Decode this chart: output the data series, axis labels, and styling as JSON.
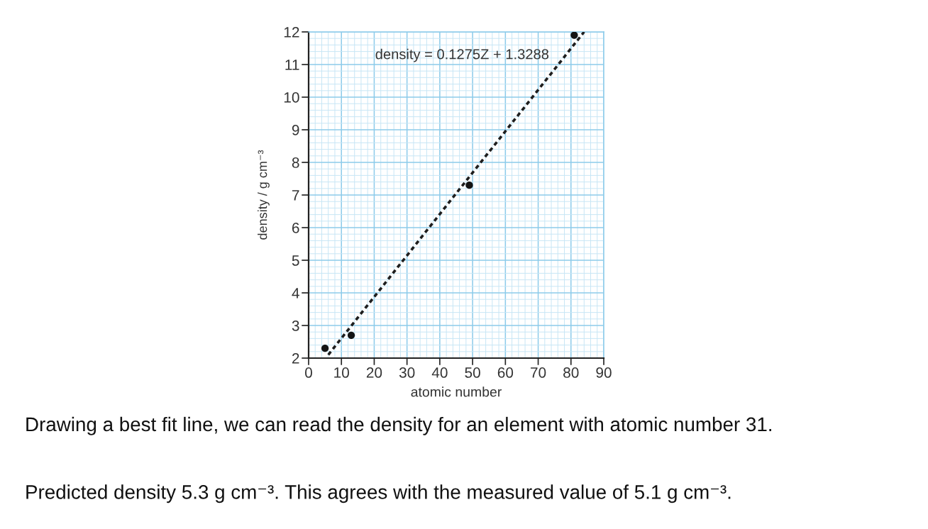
{
  "chart_data": {
    "type": "scatter",
    "xlabel": "atomic number",
    "ylabel": "density / g cm⁻³",
    "xlim": [
      0,
      90
    ],
    "xticks": [
      0,
      {
        "value": 2,
        "label": null
      },
      {
        "value": 4,
        "label": null
      },
      {
        "value": 6,
        "label": null
      },
      {
        "value": 8,
        "label": null
      },
      10,
      {
        "value": 12,
        "label": null
      },
      {
        "value": 14,
        "label": null
      },
      {
        "value": 16,
        "label": null
      },
      {
        "value": 18,
        "label": null
      },
      20,
      {
        "value": 22,
        "label": null
      },
      {
        "value": 24,
        "label": null
      },
      {
        "value": 26,
        "label": null
      },
      {
        "value": 28,
        "label": null
      },
      30,
      {
        "value": 32,
        "label": null
      },
      {
        "value": 34,
        "label": null
      },
      {
        "value": 36,
        "label": null
      },
      {
        "value": 38,
        "label": null
      },
      40,
      {
        "value": 42,
        "label": null
      },
      {
        "value": 44,
        "label": null
      },
      {
        "value": 46,
        "label": null
      },
      {
        "value": 48,
        "label": null
      },
      50,
      {
        "value": 52,
        "label": null
      },
      {
        "value": 54,
        "label": null
      },
      {
        "value": 56,
        "label": null
      },
      {
        "value": 58,
        "label": null
      },
      60,
      {
        "value": 62,
        "label": null
      },
      {
        "value": 64,
        "label": null
      },
      {
        "value": 66,
        "label": null
      },
      {
        "value": 68,
        "label": null
      },
      70,
      {
        "value": 72,
        "label": null
      },
      {
        "value": 74,
        "label": null
      },
      {
        "value": 76,
        "label": null
      },
      {
        "value": 78,
        "label": null
      },
      80,
      {
        "value": 82,
        "label": null
      },
      {
        "value": 84,
        "label": null
      },
      {
        "value": 86,
        "label": null
      },
      {
        "value": 88,
        "label": null
      },
      90
    ],
    "ylim": [
      2,
      12
    ],
    "yticks": [
      2,
      {
        "value": 2.2,
        "label": null
      },
      {
        "value": 2.4,
        "label": null
      },
      {
        "value": 2.6,
        "label": null
      },
      {
        "value": 2.8,
        "label": null
      },
      3,
      {
        "value": 3.2,
        "label": null
      },
      {
        "value": 3.4,
        "label": null
      },
      {
        "value": 3.6,
        "label": null
      },
      {
        "value": 3.8,
        "label": null
      },
      4,
      {
        "value": 4.2,
        "label": null
      },
      {
        "value": 4.4,
        "label": null
      },
      {
        "value": 4.6,
        "label": null
      },
      {
        "value": 4.8,
        "label": null
      },
      5,
      {
        "value": 5.2,
        "label": null
      },
      {
        "value": 5.4,
        "label": null
      },
      {
        "value": 5.6,
        "label": null
      },
      {
        "value": 5.8,
        "label": null
      },
      6,
      {
        "value": 6.2,
        "label": null
      },
      {
        "value": 6.4,
        "label": null
      },
      {
        "value": 6.6,
        "label": null
      },
      {
        "value": 6.8,
        "label": null
      },
      7,
      {
        "value": 7.2,
        "label": null
      },
      {
        "value": 7.4,
        "label": null
      },
      {
        "value": 7.6,
        "label": null
      },
      {
        "value": 7.8,
        "label": null
      },
      8,
      {
        "value": 8.2,
        "label": null
      },
      {
        "value": 8.4,
        "label": null
      },
      {
        "value": 8.6,
        "label": null
      },
      {
        "value": 8.8,
        "label": null
      },
      9,
      {
        "value": 9.2,
        "label": null
      },
      {
        "value": 9.4,
        "label": null
      },
      {
        "value": 9.6,
        "label": null
      },
      {
        "value": 9.8,
        "label": null
      },
      10,
      {
        "value": 10.2,
        "label": null
      },
      {
        "value": 10.4,
        "label": null
      },
      {
        "value": 10.6,
        "label": null
      },
      {
        "value": 10.8,
        "label": null
      },
      11,
      {
        "value": 11.2,
        "label": null
      },
      {
        "value": 11.4,
        "label": null
      },
      {
        "value": 11.6,
        "label": null
      },
      {
        "value": 11.8,
        "label": null
      },
      12
    ],
    "grid": true,
    "marker": "circle",
    "series": [
      {
        "x": [
          5,
          13,
          49,
          81
        ],
        "values": [
          2.3,
          2.7,
          7.3,
          11.9
        ],
        "color": "#141414"
      },
      {
        "type": "line",
        "x": [
          6,
          84
        ],
        "values": [
          2.1,
          12.0
        ],
        "color": "#1e1e1e",
        "line_style": "dashed",
        "marker": "none"
      }
    ],
    "annotations": [
      "density = 0.1275Z + 1.3288",
      "Drawing a best fit line, we can read the density for an element with atomic number 31.",
      "Predicted density 5.3 g cm⁻³. This agrees with the measured value of 5.1 g cm⁻³."
    ]
  }
}
